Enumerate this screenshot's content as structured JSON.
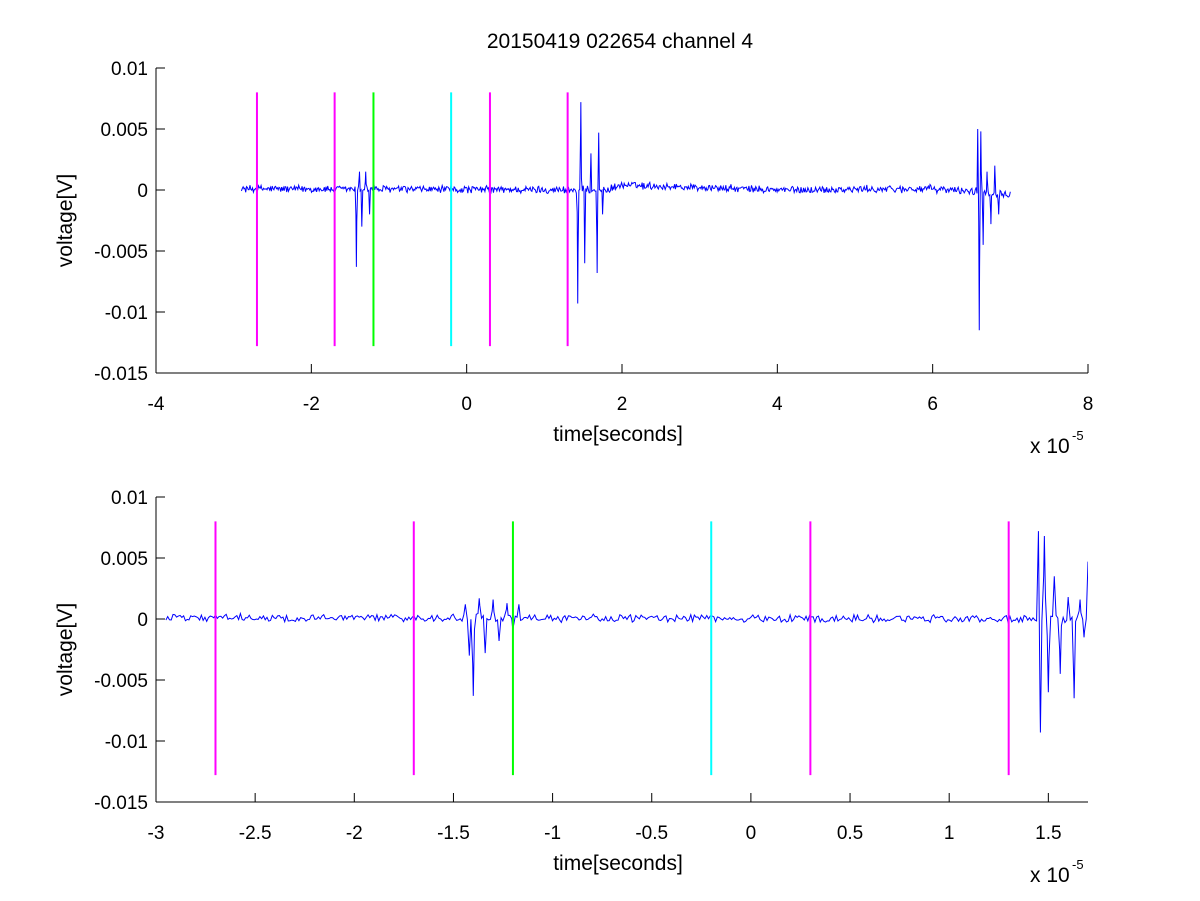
{
  "figure_title": "20150419 022654 channel 4",
  "chart_data": [
    {
      "type": "line",
      "title": "20150419 022654 channel 4",
      "xlabel": "time[seconds]",
      "ylabel": "voltage[V]",
      "x_exponent_base": "x 10",
      "x_exponent_power": "-5",
      "xlim": [
        -4,
        8
      ],
      "ylim": [
        -0.015,
        0.01
      ],
      "xticks": [
        -4,
        -2,
        0,
        2,
        4,
        6,
        8
      ],
      "xtick_labels": [
        "-4",
        "-2",
        "0",
        "2",
        "4",
        "6",
        "8"
      ],
      "yticks": [
        0.01,
        0.005,
        0,
        -0.005,
        -0.01,
        -0.015
      ],
      "ytick_labels": [
        "0.01",
        "0.005",
        "0",
        "-0.005",
        "-0.01",
        "-0.015"
      ],
      "grid": false,
      "series": [
        {
          "color": "#0000ff",
          "signal_range": [
            -2.9,
            7.0
          ],
          "noise_amplitude": 0.0003,
          "baseline": [
            [
              -2.9,
              0.0001
            ],
            [
              1.8,
              0.0
            ],
            [
              2.0,
              0.0004
            ],
            [
              4.0,
              0.0
            ],
            [
              6.0,
              0.0001
            ],
            [
              7.0,
              -0.0003
            ]
          ],
          "bursts": [
            {
              "x": -1.4,
              "peaks": [
                [
                  -1.42,
                  -0.0063
                ],
                [
                  -1.38,
                  0.0015
                ],
                [
                  -1.35,
                  -0.003
                ],
                [
                  -1.3,
                  0.0015
                ],
                [
                  -1.25,
                  -0.002
                ],
                [
                  -1.2,
                  0.0012
                ]
              ]
            },
            {
              "x": 1.45,
              "peaks": [
                [
                  1.43,
                  -0.0093
                ],
                [
                  1.47,
                  0.0072
                ],
                [
                  1.52,
                  -0.006
                ],
                [
                  1.6,
                  0.003
                ],
                [
                  1.68,
                  -0.0068
                ],
                [
                  1.7,
                  0.0047
                ],
                [
                  1.75,
                  -0.002
                ]
              ]
            },
            {
              "x": 6.6,
              "peaks": [
                [
                  6.58,
                  0.005
                ],
                [
                  6.6,
                  -0.0115
                ],
                [
                  6.62,
                  0.0048
                ],
                [
                  6.65,
                  -0.0045
                ],
                [
                  6.7,
                  0.0015
                ],
                [
                  6.75,
                  -0.0028
                ],
                [
                  6.8,
                  0.002
                ],
                [
                  6.85,
                  -0.002
                ]
              ]
            }
          ]
        }
      ],
      "markers": [
        {
          "x": -2.7,
          "color": "#ff00ff"
        },
        {
          "x": -1.7,
          "color": "#ff00ff"
        },
        {
          "x": -1.2,
          "color": "#00ff00"
        },
        {
          "x": -0.2,
          "color": "#00ffff"
        },
        {
          "x": 0.3,
          "color": "#ff00ff"
        },
        {
          "x": 1.3,
          "color": "#ff00ff"
        }
      ],
      "marker_range": [
        -0.0128,
        0.008
      ]
    },
    {
      "type": "line",
      "xlabel": "time[seconds]",
      "ylabel": "voltage[V]",
      "x_exponent_base": "x 10",
      "x_exponent_power": "-5",
      "xlim": [
        -3.0,
        1.7
      ],
      "ylim": [
        -0.015,
        0.01
      ],
      "xticks": [
        -3,
        -2.5,
        -2,
        -1.5,
        -1,
        -0.5,
        0,
        0.5,
        1,
        1.5
      ],
      "xtick_labels": [
        "-3",
        "-2.5",
        "-2",
        "-1.5",
        "-1",
        "-0.5",
        "0",
        "0.5",
        "1",
        "1.5"
      ],
      "yticks": [
        0.01,
        0.005,
        0,
        -0.005,
        -0.01,
        -0.015
      ],
      "ytick_labels": [
        "0.01",
        "0.005",
        "0",
        "-0.005",
        "-0.01",
        "-0.015"
      ],
      "grid": false,
      "series": [
        {
          "color": "#0000ff",
          "signal_range": [
            -2.95,
            1.7
          ],
          "noise_amplitude": 0.0003,
          "baseline": [
            [
              -2.95,
              0.0001
            ],
            [
              1.7,
              0.0
            ]
          ],
          "bursts": [
            {
              "x": -1.4,
              "peaks": [
                [
                  -1.44,
                  0.0012
                ],
                [
                  -1.42,
                  -0.003
                ],
                [
                  -1.4,
                  -0.0063
                ],
                [
                  -1.37,
                  0.0017
                ],
                [
                  -1.34,
                  -0.0028
                ],
                [
                  -1.3,
                  0.0016
                ],
                [
                  -1.27,
                  -0.0018
                ],
                [
                  -1.23,
                  0.0013
                ],
                [
                  -1.2,
                  -0.001
                ],
                [
                  -1.17,
                  0.0012
                ]
              ]
            },
            {
              "x": 1.45,
              "peaks": [
                [
                  1.45,
                  0.0072
                ],
                [
                  1.46,
                  -0.0093
                ],
                [
                  1.48,
                  0.0068
                ],
                [
                  1.5,
                  -0.006
                ],
                [
                  1.53,
                  0.0035
                ],
                [
                  1.56,
                  -0.0045
                ],
                [
                  1.6,
                  0.0018
                ],
                [
                  1.63,
                  -0.0065
                ],
                [
                  1.66,
                  0.0016
                ],
                [
                  1.68,
                  -0.0015
                ],
                [
                  1.7,
                  0.0047
                ]
              ]
            }
          ]
        }
      ],
      "markers": [
        {
          "x": -2.7,
          "color": "#ff00ff"
        },
        {
          "x": -1.7,
          "color": "#ff00ff"
        },
        {
          "x": -1.2,
          "color": "#00ff00"
        },
        {
          "x": -0.2,
          "color": "#00ffff"
        },
        {
          "x": 0.3,
          "color": "#ff00ff"
        },
        {
          "x": 1.3,
          "color": "#ff00ff"
        }
      ],
      "marker_range": [
        -0.0128,
        0.008
      ]
    }
  ]
}
